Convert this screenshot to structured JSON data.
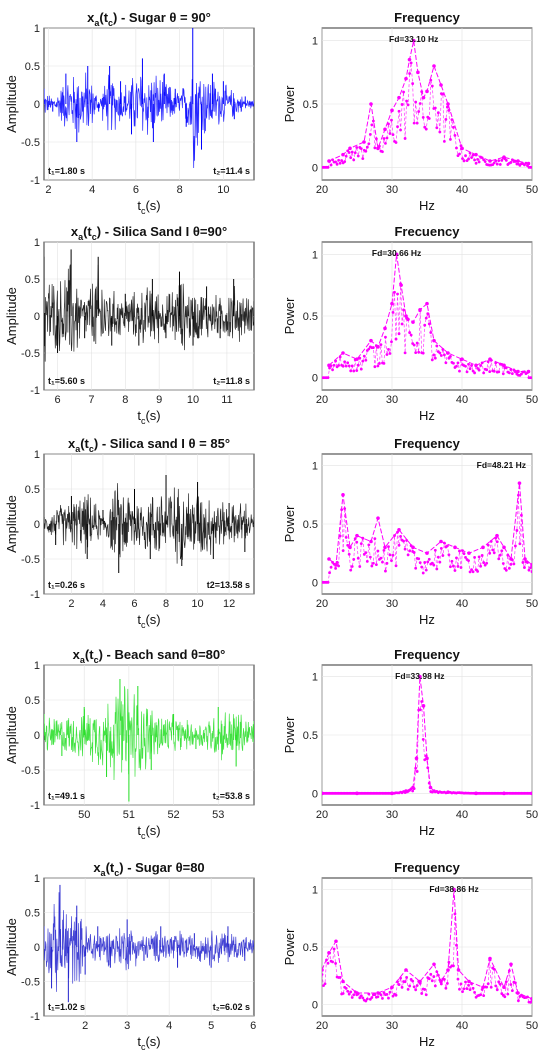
{
  "chart_data": [
    {
      "type": "line",
      "panel": "time",
      "title": "x_a(t_c) - Sugar θ = 90°",
      "ylabel": "Amplitude",
      "xlabel": "t_c(s)",
      "xlim": [
        1.8,
        11.4
      ],
      "ylim": [
        -1,
        1
      ],
      "xticks": [
        2,
        4,
        6,
        8,
        10
      ],
      "yticks": [
        -1,
        -0.5,
        0,
        0.5,
        1
      ],
      "series": [
        {
          "color": "#0000ff",
          "x": [
            1.8,
            2.2,
            2.8,
            3.3,
            3.8,
            4.3,
            4.8,
            5.3,
            5.8,
            6.3,
            6.8,
            7.3,
            7.8,
            8.3,
            8.6,
            9.0,
            9.5,
            10.0,
            10.5,
            11.0,
            11.4
          ],
          "y": [
            0.2,
            -0.1,
            0.4,
            -0.5,
            0.5,
            -0.1,
            0.5,
            0.3,
            -0.4,
            0.6,
            -0.5,
            0.4,
            0.2,
            -0.3,
            1.0,
            -0.6,
            0.4,
            0.3,
            -0.2,
            0.1,
            0.05
          ]
        }
      ],
      "annotations": [
        "t₁=1.80 s",
        "t₂=11.4 s"
      ]
    },
    {
      "type": "line",
      "panel": "freq",
      "title": "Frequency",
      "ylabel": "Power",
      "xlabel": "Hz",
      "xlim": [
        20,
        50
      ],
      "ylim": [
        -0.1,
        1.1
      ],
      "xticks": [
        20,
        30,
        40,
        50
      ],
      "yticks": [
        0,
        0.5,
        1
      ],
      "series": [
        {
          "color": "#ff00ff",
          "x": [
            21,
            23,
            24,
            26,
            27,
            28,
            29,
            30,
            31,
            32,
            32.5,
            33.1,
            33.7,
            34.5,
            35,
            36,
            37,
            38,
            40,
            42,
            44,
            46,
            48,
            49.5
          ],
          "y": [
            0.05,
            0.1,
            0.15,
            0.2,
            0.5,
            0.15,
            0.3,
            0.45,
            0.55,
            0.7,
            0.85,
            1.0,
            0.75,
            0.55,
            0.6,
            0.8,
            0.65,
            0.5,
            0.15,
            0.1,
            0.05,
            0.08,
            0.05,
            0.03
          ]
        }
      ],
      "annotations": [
        "Fd=33.10 Hz"
      ]
    },
    {
      "type": "line",
      "panel": "time",
      "title": "x_a(t_c) - Silica Sand I θ=90°",
      "ylabel": "Amplitude",
      "xlabel": "t_c(s)",
      "xlim": [
        5.6,
        11.8
      ],
      "ylim": [
        -1,
        1
      ],
      "xticks": [
        6,
        7,
        8,
        9,
        10,
        11
      ],
      "yticks": [
        -1,
        -0.5,
        0,
        0.5,
        1
      ],
      "series": [
        {
          "color": "#000000",
          "x": [
            5.6,
            6.0,
            6.4,
            6.8,
            7.2,
            7.6,
            8.0,
            8.4,
            8.8,
            9.2,
            9.6,
            10.0,
            10.4,
            10.8,
            11.2,
            11.8
          ],
          "y": [
            0.8,
            -0.5,
            0.9,
            -0.3,
            0.8,
            -0.4,
            0.3,
            -0.4,
            0.5,
            -0.3,
            0.6,
            -0.4,
            0.4,
            -0.3,
            0.5,
            0.2
          ]
        }
      ],
      "annotations": [
        "t₁=5.60 s",
        "t₂=11.8 s"
      ]
    },
    {
      "type": "line",
      "panel": "freq",
      "title": "Frecuency",
      "ylabel": "Power",
      "xlabel": "Hz",
      "xlim": [
        20,
        50
      ],
      "ylim": [
        -0.1,
        1.1
      ],
      "xticks": [
        20,
        30,
        40,
        50
      ],
      "yticks": [
        0,
        0.5,
        1
      ],
      "series": [
        {
          "color": "#ff00ff",
          "x": [
            21,
            23,
            25,
            27,
            28,
            29,
            30,
            30.66,
            31.3,
            32,
            33,
            34,
            35,
            36,
            38,
            40,
            42,
            44,
            46,
            48,
            49.5
          ],
          "y": [
            0.1,
            0.2,
            0.15,
            0.3,
            0.25,
            0.4,
            0.6,
            1.0,
            0.75,
            0.5,
            0.45,
            0.55,
            0.6,
            0.3,
            0.2,
            0.15,
            0.1,
            0.15,
            0.1,
            0.05,
            0.05
          ]
        }
      ],
      "annotations": [
        "Fd=30.66 Hz"
      ]
    },
    {
      "type": "line",
      "panel": "time",
      "title": "x_a(t_c) - Silica sand I θ = 85°",
      "ylabel": "Amplitude",
      "xlabel": "t_c(s)",
      "xlim": [
        0.26,
        13.58
      ],
      "ylim": [
        -1,
        1
      ],
      "xticks": [
        2,
        4,
        6,
        8,
        10,
        12
      ],
      "yticks": [
        -1,
        -0.5,
        0,
        0.5,
        1
      ],
      "series": [
        {
          "color": "#000000",
          "x": [
            0.26,
            1.0,
            2.0,
            3.0,
            4.0,
            5.0,
            6.0,
            7.0,
            8.0,
            9.0,
            10.0,
            11.0,
            12.0,
            13.0,
            13.58
          ],
          "y": [
            0.1,
            -0.3,
            0.4,
            -0.5,
            0.2,
            -0.7,
            0.5,
            -0.5,
            0.7,
            -0.6,
            0.6,
            -0.5,
            0.3,
            -0.4,
            0.1
          ]
        }
      ],
      "annotations": [
        "t₁=0.26 s",
        "t2=13.58 s"
      ]
    },
    {
      "type": "line",
      "panel": "freq",
      "title": "Frequency",
      "ylabel": "Power",
      "xlabel": "Hz",
      "xlim": [
        20,
        50
      ],
      "ylim": [
        -0.1,
        1.1
      ],
      "xticks": [
        20,
        30,
        40,
        50
      ],
      "yticks": [
        0,
        0.5,
        1
      ],
      "series": [
        {
          "color": "#ff00ff",
          "x": [
            21,
            22,
            23,
            24,
            25,
            27,
            28,
            29,
            31,
            33,
            35,
            37,
            39,
            41,
            43,
            45,
            46,
            47,
            48.21,
            49,
            50
          ],
          "y": [
            0.2,
            0.15,
            0.75,
            0.3,
            0.4,
            0.35,
            0.55,
            0.3,
            0.45,
            0.3,
            0.25,
            0.35,
            0.3,
            0.25,
            0.3,
            0.4,
            0.3,
            0.2,
            0.85,
            0.2,
            0.15
          ]
        }
      ],
      "annotations": [
        "Fd=48.21 Hz"
      ]
    },
    {
      "type": "line",
      "panel": "time",
      "title": "x_a(t_c) - Beach sand θ=80°",
      "ylabel": "Amplitude",
      "xlabel": "t_c(s)",
      "xlim": [
        49.1,
        53.8
      ],
      "ylim": [
        -1,
        1
      ],
      "xticks": [
        50,
        51,
        52,
        53
      ],
      "yticks": [
        -1,
        -0.5,
        0,
        0.5,
        1
      ],
      "series": [
        {
          "color": "#22dd22",
          "x": [
            49.1,
            49.5,
            50.0,
            50.5,
            50.8,
            51.0,
            51.2,
            51.5,
            52.0,
            52.5,
            53.0,
            53.4,
            53.8
          ],
          "y": [
            0.3,
            -0.3,
            0.4,
            -0.6,
            0.8,
            -0.95,
            0.7,
            -0.5,
            0.3,
            -0.2,
            0.4,
            -0.45,
            0.2
          ]
        }
      ],
      "annotations": [
        "t₁=49.1 s",
        "t₂=53.8 s"
      ]
    },
    {
      "type": "line",
      "panel": "freq",
      "title": "Frequency",
      "ylabel": "Power",
      "xlabel": "Hz",
      "xlim": [
        20,
        50
      ],
      "ylim": [
        -0.1,
        1.1
      ],
      "xticks": [
        20,
        30,
        40,
        50
      ],
      "yticks": [
        0,
        0.5,
        1
      ],
      "series": [
        {
          "color": "#ff00ff",
          "x": [
            20,
            25,
            30,
            32,
            33,
            33.5,
            33.98,
            34.5,
            35,
            35.5,
            36,
            38,
            42,
            46,
            50
          ],
          "y": [
            0,
            0,
            0,
            0.02,
            0.05,
            0.3,
            1.0,
            0.75,
            0.3,
            0.05,
            0.02,
            0.01,
            0,
            0,
            0
          ]
        }
      ],
      "annotations": [
        "Fd=33.98 Hz"
      ]
    },
    {
      "type": "line",
      "panel": "time",
      "title": "x_a(t_c) - Sugar θ=80",
      "ylabel": "Amplitude",
      "xlabel": "t_c(s)",
      "xlim": [
        1.02,
        6.02
      ],
      "ylim": [
        -1,
        1
      ],
      "xticks": [
        2,
        3,
        4,
        5,
        6
      ],
      "yticks": [
        -1,
        -0.5,
        0,
        0.5,
        1
      ],
      "series": [
        {
          "color": "#2222cc",
          "x": [
            1.02,
            1.2,
            1.4,
            1.6,
            1.8,
            2.0,
            2.3,
            2.6,
            3.0,
            3.4,
            3.8,
            4.2,
            4.6,
            5.0,
            5.4,
            5.8,
            6.02
          ],
          "y": [
            0.3,
            -0.6,
            0.9,
            -0.8,
            0.6,
            -0.4,
            0.3,
            -0.3,
            0.4,
            -0.2,
            0.3,
            -0.3,
            0.2,
            -0.3,
            0.3,
            -0.2,
            0.1
          ]
        }
      ],
      "annotations": [
        "t₁=1.02 s",
        "t₂=6.02 s"
      ]
    },
    {
      "type": "line",
      "panel": "freq",
      "title": "Frequency",
      "ylabel": "Power",
      "xlabel": "Hz",
      "xlim": [
        20,
        50
      ],
      "ylim": [
        -0.1,
        1.1
      ],
      "xticks": [
        20,
        30,
        40,
        50
      ],
      "yticks": [
        0,
        0.5,
        1
      ],
      "series": [
        {
          "color": "#ff00ff",
          "x": [
            20,
            21,
            22,
            23,
            25,
            28,
            30,
            32,
            34,
            36,
            37,
            38,
            38.86,
            39.5,
            41,
            43,
            44,
            46,
            47,
            48,
            50
          ],
          "y": [
            0.3,
            0.45,
            0.55,
            0.2,
            0.1,
            0.1,
            0.15,
            0.3,
            0.2,
            0.35,
            0.2,
            0.3,
            1.0,
            0.3,
            0.2,
            0.15,
            0.4,
            0.15,
            0.35,
            0.1,
            0.05
          ]
        }
      ],
      "annotations": [
        "Fd=38.86 Hz"
      ]
    }
  ]
}
